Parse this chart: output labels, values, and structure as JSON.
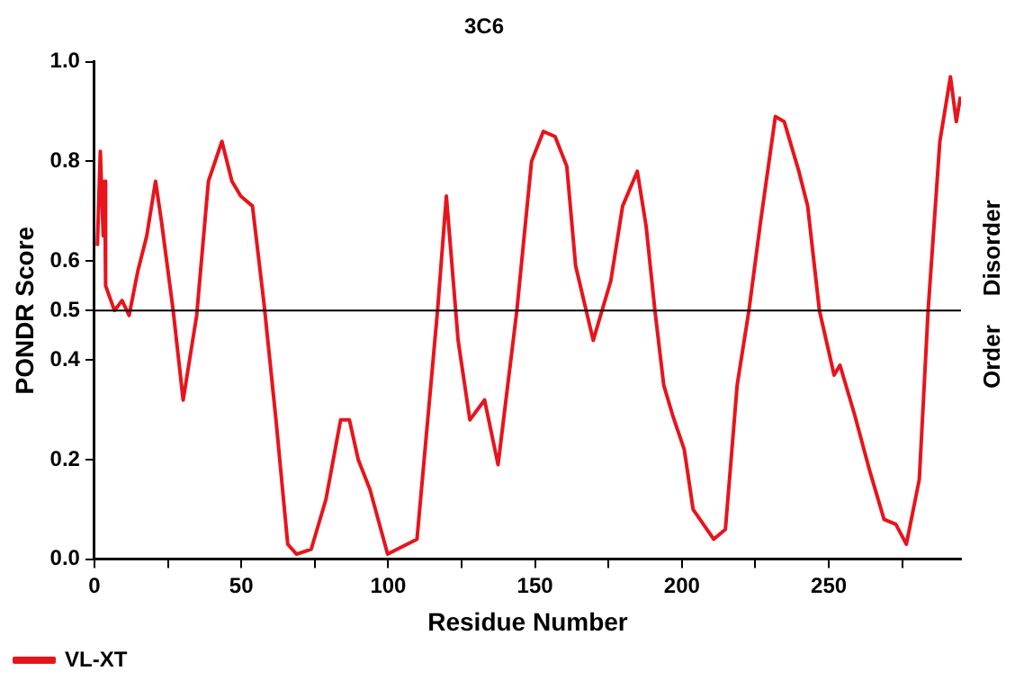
{
  "chart_data": {
    "type": "line",
    "title": "3C6",
    "xlabel": "Residue Number",
    "ylabel": "PONDR Score",
    "annotations": [
      "Disorder",
      "Order"
    ],
    "xlim": [
      0,
      295
    ],
    "xticks": [
      0,
      {
        "value": 25,
        "label": null
      },
      50,
      {
        "value": 75,
        "label": null
      },
      100,
      {
        "value": 125,
        "label": null
      },
      150,
      {
        "value": 175,
        "label": null
      },
      200,
      {
        "value": 225,
        "label": null
      },
      250,
      {
        "value": 275,
        "label": null
      }
    ],
    "ylim": [
      0,
      1
    ],
    "yticks": [
      {
        "value": 0,
        "label": "0.0"
      },
      0.2,
      0.4,
      0.5,
      0.6,
      0.8,
      {
        "value": 1,
        "label": "1.0"
      }
    ],
    "ref_lines": [
      {
        "axis": "y",
        "value": 0.5,
        "color": "#000000"
      }
    ],
    "grid": false,
    "legend": "bottom left",
    "marker": "none",
    "line_style": "solid",
    "series": [
      {
        "name": "VL-XT",
        "color": "#e8141c",
        "x": [
          1,
          2,
          3,
          3.5,
          3.8,
          6.8,
          9.4,
          11.8,
          14.8,
          17.8,
          20.8,
          22.8,
          26.8,
          30.2,
          34.8,
          38.8,
          43.4,
          46.8,
          49.8,
          53.8,
          57.8,
          61.8,
          65.8,
          68.8,
          73.8,
          78.8,
          83.8,
          86.8,
          89.8,
          93.8,
          99.8,
          109.8,
          116.8,
          119.8,
          123.8,
          127.8,
          132.8,
          137.4,
          143.8,
          148.8,
          152.8,
          156.8,
          160.8,
          163.8,
          167.4,
          169.8,
          175.8,
          179.8,
          184.8,
          187.8,
          190.8,
          193.8,
          196.8,
          200.8,
          203.8,
          210.8,
          214.8,
          218.8,
          222.8,
          226.8,
          231.8,
          234.8,
          239.8,
          242.8,
          246.8,
          251.8,
          253.8,
          258.8,
          263.8,
          268.8,
          272.8,
          276.4,
          280.8,
          283.8,
          287.8,
          291.4,
          293.4,
          294.8
        ],
        "values": [
          0.63,
          0.82,
          0.65,
          0.76,
          0.55,
          0.5,
          0.52,
          0.49,
          0.58,
          0.65,
          0.76,
          0.68,
          0.5,
          0.32,
          0.49,
          0.76,
          0.84,
          0.76,
          0.73,
          0.71,
          0.51,
          0.28,
          0.03,
          0.01,
          0.02,
          0.12,
          0.28,
          0.28,
          0.2,
          0.14,
          0.01,
          0.04,
          0.5,
          0.73,
          0.44,
          0.28,
          0.32,
          0.19,
          0.5,
          0.8,
          0.86,
          0.85,
          0.79,
          0.59,
          0.5,
          0.44,
          0.56,
          0.71,
          0.78,
          0.67,
          0.5,
          0.35,
          0.29,
          0.22,
          0.1,
          0.04,
          0.06,
          0.35,
          0.5,
          0.68,
          0.89,
          0.88,
          0.78,
          0.71,
          0.5,
          0.37,
          0.39,
          0.29,
          0.18,
          0.08,
          0.07,
          0.03,
          0.16,
          0.5,
          0.84,
          0.97,
          0.88,
          0.93
        ]
      }
    ]
  }
}
